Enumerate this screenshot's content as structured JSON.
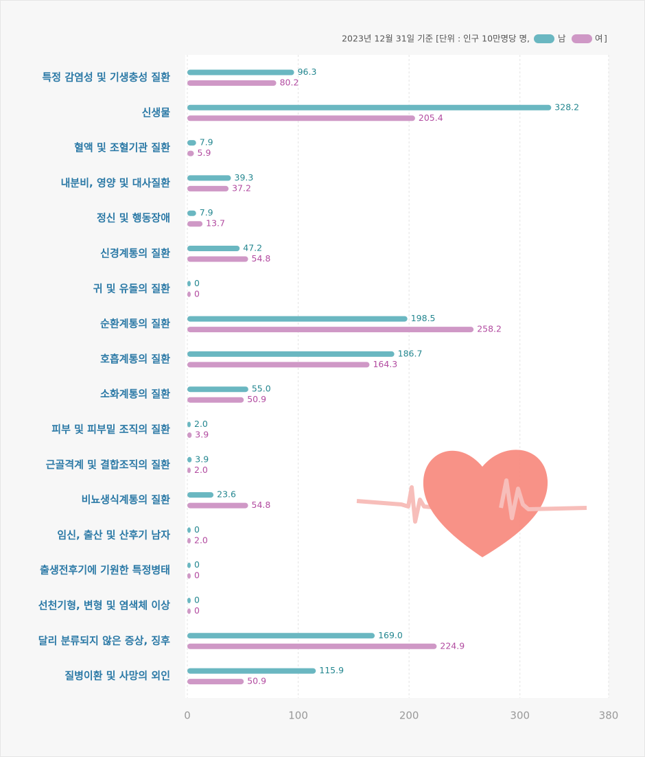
{
  "chart_data": {
    "type": "bar",
    "orientation": "horizontal",
    "note": "2023년 12월 31일 기준  [단위 : 인구 10만명당 명,",
    "note_end": "]",
    "categories": [
      "특정 감염성 및 기생충성 질환",
      "신생물",
      "혈액 및 조혈기관 질환",
      "내분비, 영양 및 대사질환",
      "정신 및 행동장애",
      "신경계통의 질환",
      "귀 및 유돌의 질환",
      "순환계통의 질환",
      "호흡계통의 질환",
      "소화계통의 질환",
      "피부 및 피부밑 조직의 질환",
      "근골격계 및 결합조직의 질환",
      "비뇨생식계통의 질환",
      "임신, 출산 및 산후기 남자",
      "출생전후기에 기원한 특정병태",
      "선천기형, 변형 및 염색체 이상",
      "달리 분류되지 않은 증상, 징후",
      "질병이환 및 사망의 외인"
    ],
    "series": [
      {
        "name": "남",
        "color": "#6ab7c1",
        "label_color": "#23868f",
        "values": [
          96.3,
          328.2,
          7.9,
          39.3,
          7.9,
          47.2,
          0,
          198.5,
          186.7,
          55.0,
          2.0,
          3.9,
          23.6,
          0,
          0,
          0,
          169.0,
          115.9
        ],
        "value_labels": [
          "96.3",
          "328.2",
          "7.9",
          "39.3",
          "7.9",
          "47.2",
          "0",
          "198.5",
          "186.7",
          "55.0",
          "2.0",
          "3.9",
          "23.6",
          "0",
          "0",
          "0",
          "169.0",
          "115.9"
        ]
      },
      {
        "name": "여",
        "color": "#cf98c6",
        "label_color": "#b24ba0",
        "values": [
          80.2,
          205.4,
          5.9,
          37.2,
          13.7,
          54.8,
          0,
          258.2,
          164.3,
          50.9,
          3.9,
          2.0,
          54.8,
          2.0,
          0,
          0,
          224.9,
          50.9
        ],
        "value_labels": [
          "80.2",
          "205.4",
          "5.9",
          "37.2",
          "13.7",
          "54.8",
          "0",
          "258.2",
          "164.3",
          "50.9",
          "3.9",
          "2.0",
          "54.8",
          "2.0",
          "0",
          "0",
          "224.9",
          "50.9"
        ]
      }
    ],
    "xlim": [
      0,
      380
    ],
    "xticks": [
      0,
      100,
      200,
      300,
      380
    ],
    "grid": true
  }
}
